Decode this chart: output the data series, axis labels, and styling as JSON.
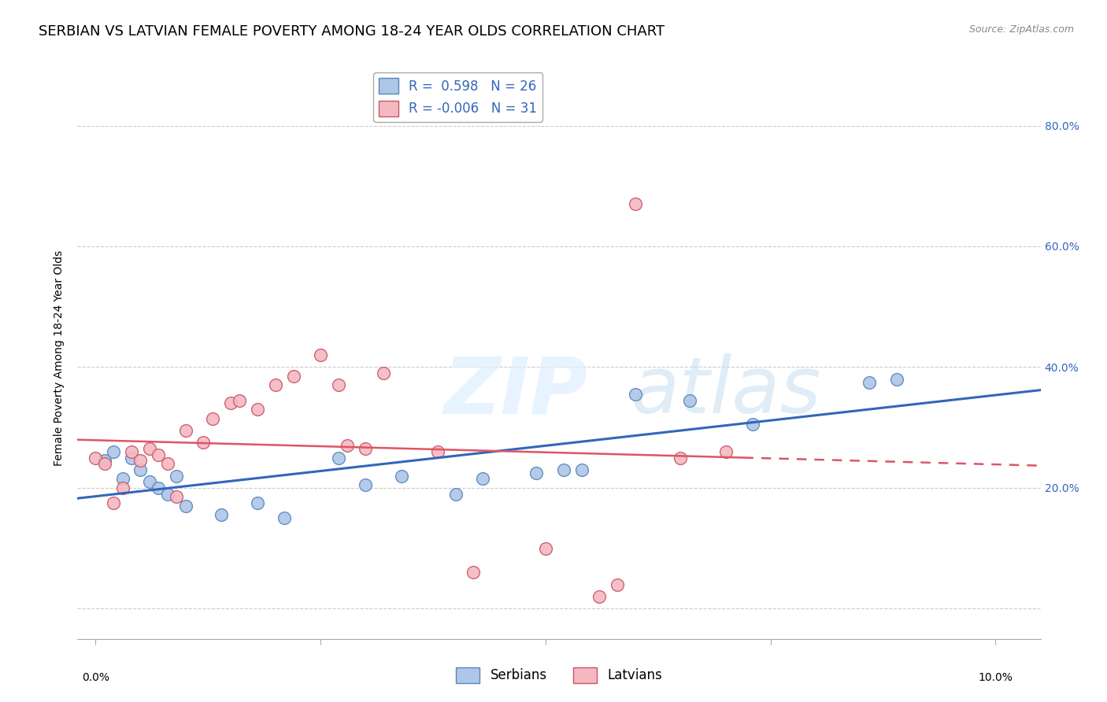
{
  "title": "SERBIAN VS LATVIAN FEMALE POVERTY AMONG 18-24 YEAR OLDS CORRELATION CHART",
  "source": "Source: ZipAtlas.com",
  "ylabel": "Female Poverty Among 18-24 Year Olds",
  "ylim": [
    -0.05,
    0.88
  ],
  "xlim": [
    -0.002,
    0.105
  ],
  "background_color": "#ffffff",
  "grid_color": "#cccccc",
  "serbian_color": "#aec6e8",
  "latvian_color": "#f4b8c1",
  "serbian_edge_color": "#5588bb",
  "latvian_edge_color": "#cc5566",
  "blue_line_color": "#3366bb",
  "pink_line_color": "#dd5566",
  "legend_blue_text": "#3366bb",
  "legend_r_serbian": "0.598",
  "legend_n_serbian": "26",
  "legend_r_latvian": "-0.006",
  "legend_n_latvian": "31",
  "serbian_x": [
    0.001,
    0.002,
    0.003,
    0.004,
    0.005,
    0.006,
    0.007,
    0.008,
    0.009,
    0.01,
    0.014,
    0.018,
    0.021,
    0.027,
    0.03,
    0.034,
    0.04,
    0.043,
    0.049,
    0.052,
    0.054,
    0.06,
    0.066,
    0.073,
    0.086,
    0.089
  ],
  "serbian_y": [
    0.245,
    0.26,
    0.215,
    0.25,
    0.23,
    0.21,
    0.2,
    0.19,
    0.22,
    0.17,
    0.155,
    0.175,
    0.15,
    0.25,
    0.205,
    0.22,
    0.19,
    0.215,
    0.225,
    0.23,
    0.23,
    0.355,
    0.345,
    0.305,
    0.375,
    0.38
  ],
  "latvian_x": [
    0.0,
    0.001,
    0.002,
    0.003,
    0.004,
    0.005,
    0.006,
    0.007,
    0.008,
    0.009,
    0.01,
    0.012,
    0.013,
    0.015,
    0.016,
    0.018,
    0.02,
    0.022,
    0.025,
    0.027,
    0.028,
    0.03,
    0.032,
    0.038,
    0.042,
    0.05,
    0.056,
    0.058,
    0.06,
    0.065,
    0.07
  ],
  "latvian_y": [
    0.25,
    0.24,
    0.175,
    0.2,
    0.26,
    0.245,
    0.265,
    0.255,
    0.24,
    0.185,
    0.295,
    0.275,
    0.315,
    0.34,
    0.345,
    0.33,
    0.37,
    0.385,
    0.42,
    0.37,
    0.27,
    0.265,
    0.39,
    0.26,
    0.06,
    0.1,
    0.02,
    0.04,
    0.67,
    0.25,
    0.26
  ],
  "marker_size": 130,
  "title_fontsize": 13,
  "axis_label_fontsize": 10,
  "tick_fontsize": 10,
  "legend_fontsize": 12
}
